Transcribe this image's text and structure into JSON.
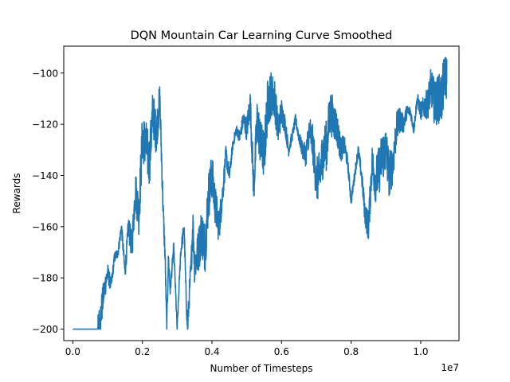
{
  "chart_data": {
    "type": "line",
    "title": "DQN Mountain Car Learning Curve Smoothed",
    "xlabel": "Number of Timesteps",
    "ylabel": "Rewards",
    "x_offset_text": "1e7",
    "xlim": [
      -0.026,
      1.11
    ],
    "ylim": [
      -204.5,
      -89.5
    ],
    "x_ticks": [
      0.0,
      0.2,
      0.4,
      0.6,
      0.8,
      1.0
    ],
    "x_tick_labels": [
      "0.0",
      "0.2",
      "0.4",
      "0.6",
      "0.8",
      "1.0"
    ],
    "y_ticks": [
      -200,
      -180,
      -160,
      -140,
      -120,
      -100
    ],
    "y_tick_labels": [
      "−200",
      "−180",
      "−160",
      "−140",
      "−120",
      "−100"
    ],
    "grid": false,
    "line_color": "#1f77b4",
    "series": [
      {
        "x": [
          0.0,
          0.06,
          0.07,
          0.075,
          0.08,
          0.09,
          0.1,
          0.11,
          0.12,
          0.13,
          0.14,
          0.15,
          0.16,
          0.17,
          0.18,
          0.19,
          0.2,
          0.21,
          0.22,
          0.23,
          0.24,
          0.25,
          0.26,
          0.265,
          0.27,
          0.275,
          0.28,
          0.29,
          0.3,
          0.31,
          0.32,
          0.325,
          0.33,
          0.335,
          0.34,
          0.345,
          0.35,
          0.36,
          0.37,
          0.38,
          0.39,
          0.4,
          0.41,
          0.42,
          0.43,
          0.44,
          0.45,
          0.46,
          0.47,
          0.48,
          0.49,
          0.5,
          0.51,
          0.52,
          0.53,
          0.54,
          0.55,
          0.56,
          0.57,
          0.58,
          0.59,
          0.6,
          0.61,
          0.62,
          0.63,
          0.64,
          0.65,
          0.66,
          0.67,
          0.68,
          0.69,
          0.7,
          0.71,
          0.72,
          0.73,
          0.74,
          0.75,
          0.76,
          0.77,
          0.78,
          0.79,
          0.8,
          0.81,
          0.82,
          0.83,
          0.84,
          0.85,
          0.86,
          0.87,
          0.88,
          0.89,
          0.9,
          0.91,
          0.92,
          0.93,
          0.94,
          0.95,
          0.96,
          0.97,
          0.98,
          0.99,
          1.0,
          1.01,
          1.02,
          1.03,
          1.04,
          1.05,
          1.06,
          1.07,
          1.075
        ],
        "y": [
          -200,
          -200,
          -200,
          -199,
          -195,
          -185,
          -178,
          -183,
          -172,
          -170,
          -160,
          -178,
          -160,
          -168,
          -145,
          -155,
          -125,
          -128,
          -135,
          -115,
          -124,
          -110,
          -155,
          -170,
          -200,
          -172,
          -185,
          -168,
          -200,
          -170,
          -160,
          -185,
          -200,
          -186,
          -176,
          -158,
          -175,
          -170,
          -162,
          -168,
          -148,
          -140,
          -152,
          -160,
          -148,
          -132,
          -140,
          -128,
          -122,
          -125,
          -118,
          -122,
          -112,
          -145,
          -118,
          -128,
          -132,
          -112,
          -108,
          -110,
          -122,
          -115,
          -120,
          -130,
          -125,
          -118,
          -125,
          -130,
          -132,
          -122,
          -128,
          -142,
          -140,
          -130,
          -128,
          -115,
          -118,
          -122,
          -130,
          -128,
          -135,
          -150,
          -140,
          -130,
          -140,
          -155,
          -160,
          -135,
          -142,
          -138,
          -132,
          -130,
          -140,
          -135,
          -122,
          -118,
          -120,
          -115,
          -115,
          -122,
          -110,
          -115,
          -113,
          -112,
          -105,
          -112,
          -110,
          -110,
          -100,
          -102
        ]
      }
    ]
  }
}
